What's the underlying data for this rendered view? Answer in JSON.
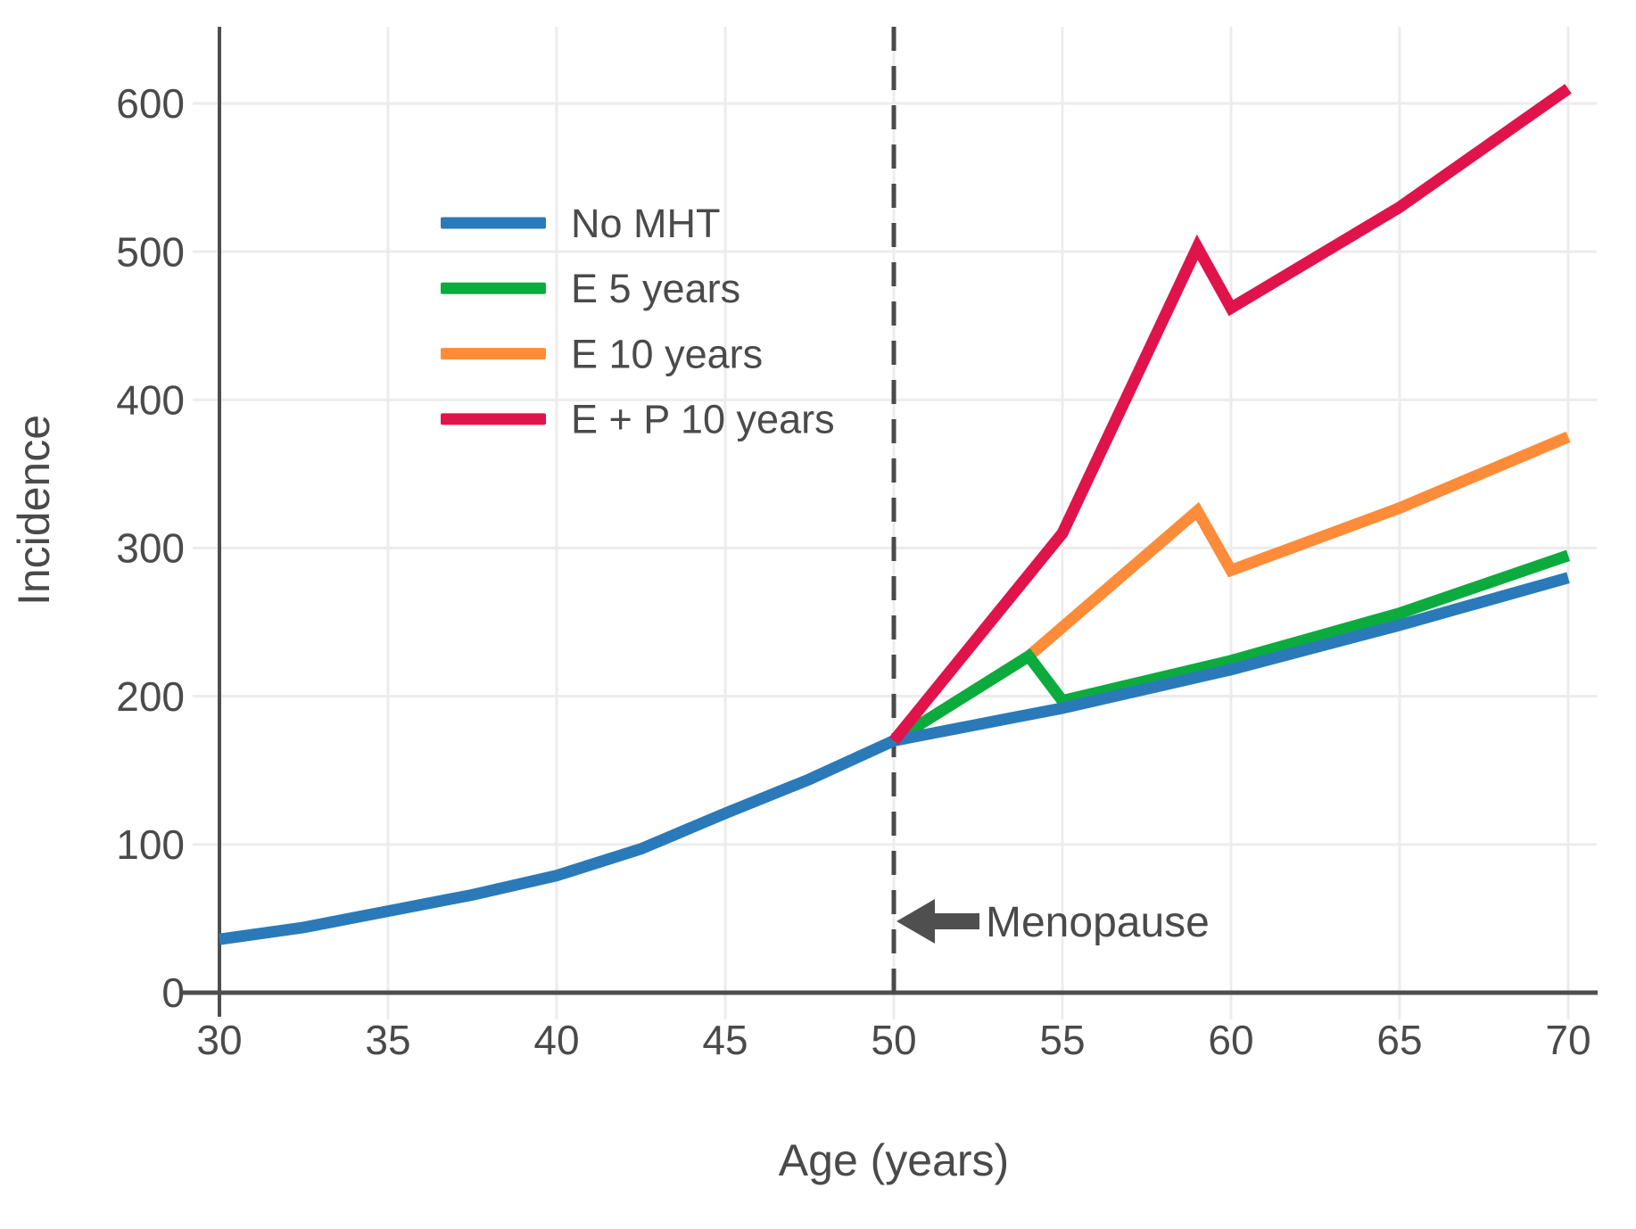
{
  "figure": {
    "background": "#ffffff"
  },
  "annotation": {
    "label": "Menopause",
    "icon": "left-arrow-icon"
  },
  "chart_data": {
    "type": "line",
    "title": "",
    "xlabel": "Age (years)",
    "ylabel": "Incidence",
    "x_ticks": [
      30,
      35,
      40,
      45,
      50,
      55,
      60,
      65,
      70
    ],
    "y_ticks": [
      0,
      100,
      200,
      300,
      400,
      500,
      600
    ],
    "xlim": [
      30,
      70
    ],
    "ylim": [
      0,
      650
    ],
    "grid": true,
    "legend_position": "upper-left-inside",
    "colors": {
      "grid": "#ececec",
      "axis": "#4e4e4e",
      "text": "#4a4a4a",
      "vline": "#4a4a4a"
    },
    "vline": {
      "x": 50,
      "style": "dashed",
      "label": "Menopause"
    },
    "series": [
      {
        "name": "No MHT",
        "color": "#2a7ab9",
        "x": [
          30,
          32.5,
          35,
          37.5,
          40,
          42.5,
          45,
          47.5,
          50,
          52.5,
          55,
          60,
          65,
          70
        ],
        "y": [
          36,
          44,
          55,
          66,
          79,
          97,
          121,
          144,
          170,
          181,
          192,
          218,
          248,
          280
        ]
      },
      {
        "name": "E 5 years",
        "color": "#0cab3e",
        "x": [
          50,
          54,
          55,
          60,
          65,
          70
        ],
        "y": [
          170,
          227,
          197,
          224,
          256,
          295
        ]
      },
      {
        "name": "E 10 years",
        "color": "#fd8c3a",
        "x": [
          50,
          54,
          59,
          60,
          65,
          70
        ],
        "y": [
          170,
          227,
          325,
          285,
          327,
          375
        ]
      },
      {
        "name": "E + P 10 years",
        "color": "#e1134b",
        "x": [
          50,
          55,
          59,
          60,
          65,
          70
        ],
        "y": [
          170,
          310,
          503,
          462,
          530,
          610
        ]
      }
    ]
  }
}
